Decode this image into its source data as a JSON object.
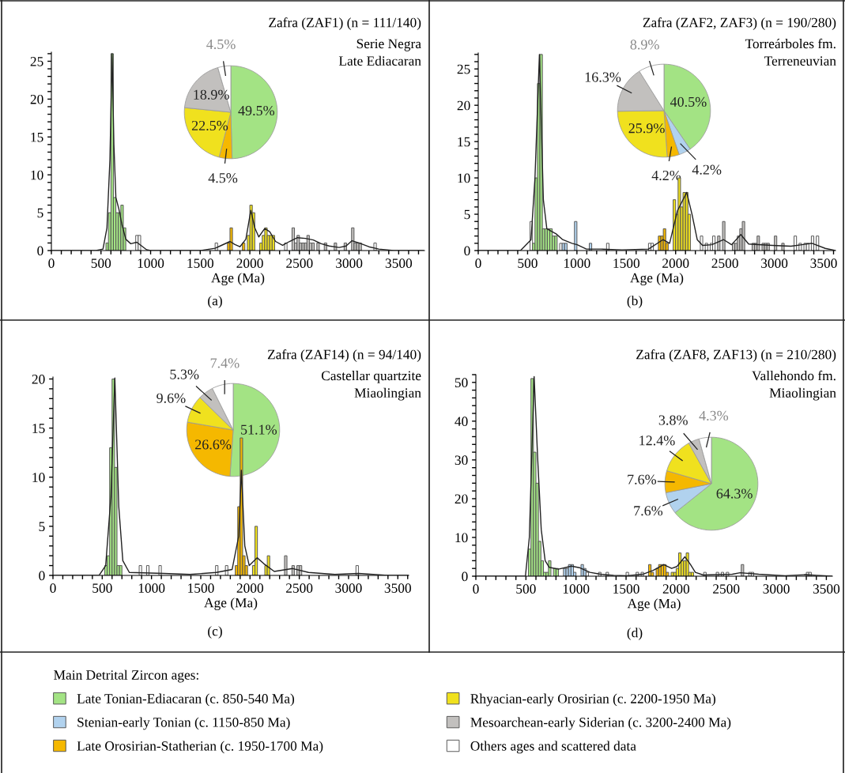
{
  "chart_data": [
    {
      "type": "pie",
      "categories": [
        null,
        null,
        null,
        null,
        null
      ],
      "values": [
        49.5,
        4.5,
        22.5,
        18.9,
        4.5
      ],
      "colors": [
        "#a3e384",
        "#f5b800",
        "#f0e11e",
        "#c2c0be",
        "#ffffff"
      ],
      "value_labels": [
        "49.5%",
        "4.5%",
        "22.5%",
        "18.9%",
        "4.5%"
      ]
    },
    {
      "type": "histogram",
      "title": "Zafra (ZAF1) (n = 111/140)",
      "subtitle": "Serie Negra\nLate Ediacaran",
      "xlabel": "Age (Ma)",
      "annotations": [
        "(a)"
      ],
      "xlim": [
        0,
        3760
      ],
      "ylim": [
        0,
        26.2
      ],
      "xticks": [
        0,
        {
          "value": 100,
          "label": null
        },
        {
          "value": 200,
          "label": null
        },
        {
          "value": 300,
          "label": null
        },
        {
          "value": 400,
          "label": null
        },
        500,
        {
          "value": 600,
          "label": null
        },
        {
          "value": 700,
          "label": null
        },
        {
          "value": 800,
          "label": null
        },
        {
          "value": 900,
          "label": null
        },
        1000,
        {
          "value": 1100,
          "label": null
        },
        {
          "value": 1200,
          "label": null
        },
        {
          "value": 1300,
          "label": null
        },
        {
          "value": 1400,
          "label": null
        },
        1500,
        {
          "value": 1600,
          "label": null
        },
        {
          "value": 1700,
          "label": null
        },
        {
          "value": 1800,
          "label": null
        },
        {
          "value": 1900,
          "label": null
        },
        2000,
        {
          "value": 2100,
          "label": null
        },
        {
          "value": 2200,
          "label": null
        },
        {
          "value": 2300,
          "label": null
        },
        {
          "value": 2400,
          "label": null
        },
        2500,
        {
          "value": 2600,
          "label": null
        },
        {
          "value": 2700,
          "label": null
        },
        {
          "value": 2800,
          "label": null
        },
        {
          "value": 2900,
          "label": null
        },
        3000,
        {
          "value": 3100,
          "label": null
        },
        {
          "value": 3200,
          "label": null
        },
        {
          "value": 3300,
          "label": null
        },
        {
          "value": 3400,
          "label": null
        },
        3500,
        {
          "value": 3600,
          "label": null
        },
        {
          "value": 3700,
          "label": null
        }
      ],
      "yticks": [
        0,
        {
          "value": 1,
          "label": null
        },
        {
          "value": 2,
          "label": null
        },
        {
          "value": 3,
          "label": null
        },
        {
          "value": 4,
          "label": null
        },
        5,
        {
          "value": 6,
          "label": null
        },
        {
          "value": 7,
          "label": null
        },
        {
          "value": 8,
          "label": null
        },
        {
          "value": 9,
          "label": null
        },
        10,
        {
          "value": 11,
          "label": null
        },
        {
          "value": 12,
          "label": null
        },
        {
          "value": 13,
          "label": null
        },
        {
          "value": 14,
          "label": null
        },
        15,
        {
          "value": 16,
          "label": null
        },
        {
          "value": 17,
          "label": null
        },
        {
          "value": 18,
          "label": null
        },
        {
          "value": 19,
          "label": null
        },
        20,
        {
          "value": 21,
          "label": null
        },
        {
          "value": 22,
          "label": null
        },
        {
          "value": 23,
          "label": null
        },
        {
          "value": 24,
          "label": null
        },
        25,
        {
          "value": 26,
          "label": null
        }
      ],
      "bins": [
        550,
        575,
        600,
        625,
        650,
        675,
        700,
        725,
        750,
        850,
        875,
        900,
        1650,
        1675,
        1775,
        1800,
        1825,
        1925,
        1950,
        1975,
        2000,
        2025,
        2050,
        2100,
        2125,
        2150,
        2175,
        2200,
        2225,
        2250,
        2350,
        2375,
        2425,
        2450,
        2475,
        2500,
        2525,
        2550,
        2575,
        2600,
        2625,
        2650,
        2675,
        2700,
        2750,
        2775,
        2850,
        2875,
        2950,
        2975,
        3025,
        3050,
        3075,
        3100,
        3125,
        3250,
        3275
      ],
      "values": [
        1,
        5,
        26,
        7,
        5,
        5,
        6,
        3,
        0,
        2,
        2,
        0,
        1,
        0,
        1,
        3,
        0,
        1,
        0,
        2,
        6,
        5,
        0,
        1,
        2,
        3,
        2,
        2,
        2,
        0,
        1,
        0,
        3,
        1,
        2,
        1,
        1,
        1,
        2,
        1,
        1,
        0,
        1,
        0,
        1,
        0,
        1,
        0,
        1,
        0,
        3,
        1,
        1,
        1,
        0,
        1
      ],
      "colors": [
        "#a3e384",
        "#a3e384",
        "#a3e384",
        "#a3e384",
        "#a3e384",
        "#a3e384",
        "#a3e384",
        "#a3e384",
        "#ffffff",
        "#ffffff",
        "#ffffff",
        "#ffffff",
        "#ffffff",
        "#ffffff",
        "#f5b800",
        "#f5b800",
        "#ffffff",
        "#f5b800",
        "#ffffff",
        "#f0e11e",
        "#f0e11e",
        "#f0e11e",
        "#ffffff",
        "#f0e11e",
        "#f0e11e",
        "#f0e11e",
        "#f0e11e",
        "#f0e11e",
        "#f0e11e",
        "#ffffff",
        "#ffffff",
        "#ffffff",
        "#c2c0be",
        "#c2c0be",
        "#c2c0be",
        "#c2c0be",
        "#c2c0be",
        "#c2c0be",
        "#c2c0be",
        "#c2c0be",
        "#c2c0be",
        "#ffffff",
        "#c2c0be",
        "#ffffff",
        "#c2c0be",
        "#ffffff",
        "#c2c0be",
        "#ffffff",
        "#c2c0be",
        "#ffffff",
        "#c2c0be",
        "#c2c0be",
        "#c2c0be",
        "#c2c0be",
        "#ffffff",
        "#ffffff"
      ],
      "series": [
        {
          "type": "line",
          "color": "#222222",
          "x": [
            0,
            450,
            520,
            560,
            590,
            612,
            630,
            650,
            680,
            710,
            750,
            800,
            860,
            900,
            960,
            1000,
            1500,
            1650,
            1700,
            1800,
            1850,
            1900,
            1960,
            2010,
            2050,
            2090,
            2150,
            2200,
            2260,
            2330,
            2400,
            2480,
            2560,
            2640,
            2720,
            2800,
            2900,
            2970,
            3030,
            3100,
            3200,
            3300,
            3450,
            3750
          ],
          "values": [
            0,
            0,
            0.2,
            3,
            12,
            26,
            14,
            7,
            5.5,
            3.5,
            1.5,
            0.9,
            1.1,
            0.7,
            0.1,
            0,
            0,
            0.3,
            0.6,
            1.2,
            0.8,
            0.5,
            1.5,
            5.3,
            3,
            1.8,
            2.9,
            2.5,
            1.2,
            0.7,
            1.2,
            1.7,
            1.6,
            1.4,
            0.9,
            0.6,
            0.4,
            0.6,
            1.3,
            1.0,
            0.5,
            0.2,
            0,
            0
          ]
        }
      ]
    },
    {
      "type": "pie",
      "categories": [
        null,
        null,
        null,
        null,
        null,
        null
      ],
      "values": [
        40.5,
        4.2,
        4.2,
        25.9,
        16.3,
        8.9
      ],
      "colors": [
        "#a3e384",
        "#b1d2ee",
        "#f5b800",
        "#f0e11e",
        "#c2c0be",
        "#ffffff"
      ],
      "value_labels": [
        "40.5%",
        "4.2%",
        "4.2%",
        "25.9%",
        "16.3%",
        "8.9%"
      ]
    },
    {
      "type": "histogram",
      "title": "Zafra (ZAF2, ZAF3) (n = 190/280)",
      "subtitle": "Torreárboles fm.\nTerreneuvian",
      "xlabel": "Age (Ma)",
      "annotations": [
        "(b)"
      ],
      "xlim": [
        0,
        3620
      ],
      "ylim": [
        0,
        27.2
      ],
      "xticks": [
        0,
        {
          "value": 100,
          "label": null
        },
        {
          "value": 200,
          "label": null
        },
        {
          "value": 300,
          "label": null
        },
        {
          "value": 400,
          "label": null
        },
        500,
        {
          "value": 600,
          "label": null
        },
        {
          "value": 700,
          "label": null
        },
        {
          "value": 800,
          "label": null
        },
        {
          "value": 900,
          "label": null
        },
        1000,
        {
          "value": 1100,
          "label": null
        },
        {
          "value": 1200,
          "label": null
        },
        {
          "value": 1300,
          "label": null
        },
        {
          "value": 1400,
          "label": null
        },
        1500,
        {
          "value": 1600,
          "label": null
        },
        {
          "value": 1700,
          "label": null
        },
        {
          "value": 1800,
          "label": null
        },
        {
          "value": 1900,
          "label": null
        },
        2000,
        {
          "value": 2100,
          "label": null
        },
        {
          "value": 2200,
          "label": null
        },
        {
          "value": 2300,
          "label": null
        },
        {
          "value": 2400,
          "label": null
        },
        2500,
        {
          "value": 2600,
          "label": null
        },
        {
          "value": 2700,
          "label": null
        },
        {
          "value": 2800,
          "label": null
        },
        {
          "value": 2900,
          "label": null
        },
        3000,
        {
          "value": 3100,
          "label": null
        },
        {
          "value": 3200,
          "label": null
        },
        {
          "value": 3300,
          "label": null
        },
        {
          "value": 3400,
          "label": null
        },
        3500,
        {
          "value": 3600,
          "label": null
        }
      ],
      "yticks": [
        0,
        {
          "value": 1,
          "label": null
        },
        {
          "value": 2,
          "label": null
        },
        {
          "value": 3,
          "label": null
        },
        {
          "value": 4,
          "label": null
        },
        5,
        {
          "value": 6,
          "label": null
        },
        {
          "value": 7,
          "label": null
        },
        {
          "value": 8,
          "label": null
        },
        {
          "value": 9,
          "label": null
        },
        10,
        {
          "value": 11,
          "label": null
        },
        {
          "value": 12,
          "label": null
        },
        {
          "value": 13,
          "label": null
        },
        {
          "value": 14,
          "label": null
        },
        15,
        {
          "value": 16,
          "label": null
        },
        {
          "value": 17,
          "label": null
        },
        {
          "value": 18,
          "label": null
        },
        {
          "value": 19,
          "label": null
        },
        20,
        {
          "value": 21,
          "label": null
        },
        {
          "value": 22,
          "label": null
        },
        {
          "value": 23,
          "label": null
        },
        {
          "value": 24,
          "label": null
        },
        25,
        {
          "value": 26,
          "label": null
        },
        {
          "value": 27,
          "label": null
        }
      ],
      "bins": [
        525,
        550,
        575,
        600,
        625,
        650,
        675,
        700,
        725,
        750,
        775,
        800,
        825,
        850,
        875,
        900,
        975,
        1000,
        1125,
        1150,
        1300,
        1325,
        1725,
        1750,
        1775,
        1825,
        1850,
        1875,
        1900,
        1925,
        1975,
        2000,
        2025,
        2050,
        2075,
        2100,
        2125,
        2150,
        2250,
        2275,
        2300,
        2325,
        2350,
        2375,
        2400,
        2425,
        2450,
        2475,
        2500,
        2575,
        2600,
        2625,
        2650,
        2675,
        2700,
        2775,
        2800,
        2825,
        2850,
        2875,
        2900,
        2925,
        2950,
        3000,
        3025,
        3075,
        3100,
        3200,
        3225,
        3250,
        3275,
        3300,
        3325,
        3350,
        3375,
        3400,
        3425,
        3450
      ],
      "values": [
        4,
        1,
        10,
        23,
        27,
        3,
        3,
        3,
        3,
        2,
        2,
        0,
        1,
        1,
        1,
        0,
        4,
        0,
        1,
        0,
        1,
        0,
        1,
        1,
        0,
        2,
        2,
        3,
        1,
        0,
        7,
        5,
        10,
        6,
        8,
        8,
        5,
        0,
        2,
        0,
        1,
        0,
        1,
        2,
        0,
        2,
        0,
        4,
        0,
        1,
        1,
        2,
        3,
        4,
        0,
        1,
        1,
        2,
        0,
        1,
        1,
        1,
        0,
        2,
        0,
        1,
        0,
        2,
        0,
        1,
        0,
        1,
        1,
        0,
        2,
        0,
        2
      ],
      "colors": [
        "#ffffff",
        "#a3e384",
        "#a3e384",
        "#a3e384",
        "#a3e384",
        "#a3e384",
        "#a3e384",
        "#a3e384",
        "#a3e384",
        "#a3e384",
        "#a3e384",
        "#ffffff",
        "#ffffff",
        "#b1d2ee",
        "#b1d2ee",
        "#ffffff",
        "#b1d2ee",
        "#ffffff",
        "#b1d2ee",
        "#ffffff",
        "#ffffff",
        "#ffffff",
        "#ffffff",
        "#ffffff",
        "#ffffff",
        "#f5b800",
        "#f5b800",
        "#f5b800",
        "#f5b800",
        "#ffffff",
        "#f0e11e",
        "#f0e11e",
        "#f0e11e",
        "#f0e11e",
        "#f0e11e",
        "#f0e11e",
        "#f0e11e",
        "#ffffff",
        "#ffffff",
        "#ffffff",
        "#ffffff",
        "#ffffff",
        "#ffffff",
        "#ffffff",
        "#ffffff",
        "#c2c0be",
        "#ffffff",
        "#c2c0be",
        "#ffffff",
        "#c2c0be",
        "#c2c0be",
        "#c2c0be",
        "#c2c0be",
        "#c2c0be",
        "#ffffff",
        "#c2c0be",
        "#c2c0be",
        "#c2c0be",
        "#ffffff",
        "#c2c0be",
        "#c2c0be",
        "#c2c0be",
        "#ffffff",
        "#c2c0be",
        "#ffffff",
        "#c2c0be",
        "#ffffff",
        "#ffffff",
        "#ffffff",
        "#ffffff",
        "#ffffff",
        "#ffffff",
        "#ffffff",
        "#ffffff",
        "#ffffff",
        "#ffffff",
        "#ffffff"
      ],
      "series": [
        {
          "type": "line",
          "color": "#222222",
          "x": [
            0,
            428,
            535,
            575,
            620,
            660,
            695,
            789,
            856,
            950,
            1003,
            1096,
            1243,
            1457,
            1725,
            1872,
            1939,
            2019,
            2112,
            2166,
            2219,
            2273,
            2366,
            2487,
            2567,
            2660,
            2740,
            2981,
            3168,
            3382,
            3516,
            3620
          ],
          "values": [
            0,
            0,
            1.5,
            10,
            27,
            7,
            3,
            2.3,
            1.5,
            1,
            0.8,
            0.2,
            0.2,
            0.1,
            0.2,
            1.5,
            1,
            5.5,
            8,
            5,
            1.5,
            0.7,
            0.8,
            1.5,
            0.8,
            2.2,
            0.9,
            0.7,
            0.6,
            1.0,
            0.3,
            0
          ]
        }
      ]
    },
    {
      "type": "pie",
      "categories": [
        null,
        null,
        null,
        null,
        null
      ],
      "values": [
        51.1,
        26.6,
        9.6,
        5.3,
        7.4
      ],
      "colors": [
        "#a3e384",
        "#f5b800",
        "#f0e11e",
        "#c2c0be",
        "#ffffff"
      ],
      "value_labels": [
        "51.1%",
        "26.6%",
        "9.6%",
        "5.3%",
        "7.4%"
      ]
    },
    {
      "type": "histogram",
      "title": "Zafra (ZAF14) (n = 94/140)",
      "subtitle": "Castellar quartzite\nMiaolingian",
      "xlabel": "Age (Ma)",
      "annotations": [
        "(c)"
      ],
      "xlim": [
        0,
        3610
      ],
      "ylim": [
        0,
        20.2
      ],
      "xticks": [
        0,
        {
          "value": 100,
          "label": null
        },
        {
          "value": 200,
          "label": null
        },
        {
          "value": 300,
          "label": null
        },
        {
          "value": 400,
          "label": null
        },
        500,
        {
          "value": 600,
          "label": null
        },
        {
          "value": 700,
          "label": null
        },
        {
          "value": 800,
          "label": null
        },
        {
          "value": 900,
          "label": null
        },
        1000,
        {
          "value": 1100,
          "label": null
        },
        {
          "value": 1200,
          "label": null
        },
        {
          "value": 1300,
          "label": null
        },
        {
          "value": 1400,
          "label": null
        },
        1500,
        {
          "value": 1600,
          "label": null
        },
        {
          "value": 1700,
          "label": null
        },
        {
          "value": 1800,
          "label": null
        },
        {
          "value": 1900,
          "label": null
        },
        2000,
        {
          "value": 2100,
          "label": null
        },
        {
          "value": 2200,
          "label": null
        },
        {
          "value": 2300,
          "label": null
        },
        {
          "value": 2400,
          "label": null
        },
        2500,
        {
          "value": 2600,
          "label": null
        },
        {
          "value": 2700,
          "label": null
        },
        {
          "value": 2800,
          "label": null
        },
        {
          "value": 2900,
          "label": null
        },
        3000,
        {
          "value": 3100,
          "label": null
        },
        {
          "value": 3200,
          "label": null
        },
        {
          "value": 3300,
          "label": null
        },
        {
          "value": 3400,
          "label": null
        },
        3500,
        {
          "value": 3600,
          "label": null
        }
      ],
      "yticks": [
        0,
        {
          "value": 1,
          "label": null
        },
        {
          "value": 2,
          "label": null
        },
        {
          "value": 3,
          "label": null
        },
        {
          "value": 4,
          "label": null
        },
        5,
        {
          "value": 6,
          "label": null
        },
        {
          "value": 7,
          "label": null
        },
        {
          "value": 8,
          "label": null
        },
        {
          "value": 9,
          "label": null
        },
        10,
        {
          "value": 11,
          "label": null
        },
        {
          "value": 12,
          "label": null
        },
        {
          "value": 13,
          "label": null
        },
        {
          "value": 14,
          "label": null
        },
        15,
        {
          "value": 16,
          "label": null
        },
        {
          "value": 17,
          "label": null
        },
        {
          "value": 18,
          "label": null
        },
        {
          "value": 19,
          "label": null
        },
        20
      ],
      "bins": [
        525,
        550,
        575,
        600,
        625,
        650,
        675,
        700,
        875,
        900,
        950,
        975,
        1075,
        1100,
        1650,
        1675,
        1750,
        1775,
        1850,
        1875,
        1900,
        1925,
        1950,
        1975,
        2025,
        2050,
        2075,
        2150,
        2175,
        2200,
        2350,
        2375,
        2425,
        2450,
        2475,
        2500,
        2525,
        3075,
        3100
      ],
      "values": [
        1,
        2,
        13,
        20,
        11,
        1,
        1,
        0,
        1,
        0,
        1,
        0,
        1,
        0,
        1,
        0,
        1,
        0,
        1,
        7,
        14,
        2,
        1,
        0,
        1,
        5,
        0,
        1,
        2,
        0,
        2,
        0,
        1,
        0,
        1,
        1,
        0,
        1
      ],
      "colors": [
        "#a3e384",
        "#a3e384",
        "#a3e384",
        "#a3e384",
        "#a3e384",
        "#a3e384",
        "#a3e384",
        "#ffffff",
        "#ffffff",
        "#ffffff",
        "#ffffff",
        "#ffffff",
        "#ffffff",
        "#ffffff",
        "#ffffff",
        "#ffffff",
        "#ffffff",
        "#ffffff",
        "#f5b800",
        "#f5b800",
        "#f5b800",
        "#f5b800",
        "#f5b800",
        "#ffffff",
        "#f0e11e",
        "#f0e11e",
        "#ffffff",
        "#f0e11e",
        "#f0e11e",
        "#ffffff",
        "#c2c0be",
        "#ffffff",
        "#c2c0be",
        "#ffffff",
        "#c2c0be",
        "#c2c0be",
        "#ffffff",
        "#ffffff"
      ],
      "series": [
        {
          "type": "line",
          "color": "#222222",
          "x": [
            0,
            468,
            535,
            588,
            628,
            668,
            709,
            775,
            1123,
            1390,
            1658,
            1818,
            1885,
            1912,
            1947,
            1992,
            2072,
            2139,
            2246,
            2433,
            2594,
            2861,
            3102,
            3396,
            3610
          ],
          "values": [
            0,
            0,
            1,
            8,
            20.1,
            7,
            1.5,
            0.3,
            0.2,
            0.1,
            0.3,
            0.6,
            4,
            10.7,
            3,
            1,
            1.8,
            1.2,
            0.4,
            0.7,
            0.3,
            0.1,
            0.2,
            0,
            0
          ]
        }
      ]
    },
    {
      "type": "pie",
      "categories": [
        null,
        null,
        null,
        null,
        null,
        null
      ],
      "values": [
        64.3,
        7.6,
        7.6,
        12.4,
        3.8,
        4.3
      ],
      "colors": [
        "#a3e384",
        "#b1d2ee",
        "#f5b800",
        "#f0e11e",
        "#c2c0be",
        "#ffffff"
      ],
      "value_labels": [
        "64.3%",
        "7.6%",
        "7.6%",
        "12.4%",
        "3.8%",
        "4.3%"
      ]
    },
    {
      "type": "histogram",
      "title": "Zafra (ZAF8, ZAF13) (n = 210/280)",
      "subtitle": "Vallehondo fm.\nMiaolingian",
      "xlabel": "Age (Ma)",
      "annotations": [
        "(d)"
      ],
      "xlim": [
        0,
        3560
      ],
      "ylim": [
        0,
        52
      ],
      "xticks": [
        0,
        {
          "value": 100,
          "label": null
        },
        {
          "value": 200,
          "label": null
        },
        {
          "value": 300,
          "label": null
        },
        {
          "value": 400,
          "label": null
        },
        500,
        {
          "value": 600,
          "label": null
        },
        {
          "value": 700,
          "label": null
        },
        {
          "value": 800,
          "label": null
        },
        {
          "value": 900,
          "label": null
        },
        1000,
        {
          "value": 1100,
          "label": null
        },
        {
          "value": 1200,
          "label": null
        },
        {
          "value": 1300,
          "label": null
        },
        {
          "value": 1400,
          "label": null
        },
        1500,
        {
          "value": 1600,
          "label": null
        },
        {
          "value": 1700,
          "label": null
        },
        {
          "value": 1800,
          "label": null
        },
        {
          "value": 1900,
          "label": null
        },
        2000,
        {
          "value": 2100,
          "label": null
        },
        {
          "value": 2200,
          "label": null
        },
        {
          "value": 2300,
          "label": null
        },
        {
          "value": 2400,
          "label": null
        },
        2500,
        {
          "value": 2600,
          "label": null
        },
        {
          "value": 2700,
          "label": null
        },
        {
          "value": 2800,
          "label": null
        },
        {
          "value": 2900,
          "label": null
        },
        3000,
        {
          "value": 3100,
          "label": null
        },
        {
          "value": 3200,
          "label": null
        },
        {
          "value": 3300,
          "label": null
        },
        {
          "value": 3400,
          "label": null
        },
        3500
      ],
      "yticks": [
        0,
        {
          "value": 2,
          "label": null
        },
        {
          "value": 4,
          "label": null
        },
        {
          "value": 6,
          "label": null
        },
        {
          "value": 8,
          "label": null
        },
        10,
        {
          "value": 12,
          "label": null
        },
        {
          "value": 14,
          "label": null
        },
        {
          "value": 16,
          "label": null
        },
        {
          "value": 18,
          "label": null
        },
        20,
        {
          "value": 22,
          "label": null
        },
        {
          "value": 24,
          "label": null
        },
        {
          "value": 26,
          "label": null
        },
        {
          "value": 28,
          "label": null
        },
        30,
        {
          "value": 32,
          "label": null
        },
        {
          "value": 34,
          "label": null
        },
        {
          "value": 36,
          "label": null
        },
        {
          "value": 38,
          "label": null
        },
        40,
        {
          "value": 42,
          "label": null
        },
        {
          "value": 44,
          "label": null
        },
        {
          "value": 46,
          "label": null
        },
        {
          "value": 48,
          "label": null
        },
        50,
        {
          "value": 52,
          "label": null
        }
      ],
      "bins": [
        525,
        550,
        575,
        600,
        625,
        650,
        675,
        700,
        725,
        750,
        775,
        800,
        825,
        875,
        900,
        925,
        950,
        975,
        1000,
        1050,
        1075,
        1100,
        1125,
        1225,
        1250,
        1300,
        1325,
        1500,
        1525,
        1600,
        1625,
        1650,
        1675,
        1725,
        1750,
        1775,
        1800,
        1825,
        1850,
        1875,
        1900,
        1925,
        1950,
        1975,
        2000,
        2025,
        2050,
        2075,
        2100,
        2125,
        2150,
        2175,
        2275,
        2300,
        2400,
        2425,
        2450,
        2475,
        2500,
        2525,
        2650,
        2675,
        2725,
        2750,
        2775,
        3300,
        3325,
        3350
      ],
      "values": [
        7,
        51,
        32,
        24,
        9,
        4,
        1,
        1,
        4,
        0,
        2,
        2,
        0,
        2,
        2,
        3,
        3,
        1,
        0,
        3,
        2,
        1,
        0,
        1,
        0,
        1,
        0,
        1,
        0,
        1,
        0,
        1,
        0,
        3,
        1,
        0,
        2,
        3,
        3,
        3,
        1,
        0,
        1,
        1,
        2,
        6,
        4,
        4,
        6,
        1,
        1,
        0,
        1,
        0,
        1,
        0,
        1,
        0,
        1,
        0,
        3,
        0,
        1,
        1,
        0,
        1,
        1
      ],
      "colors": [
        "#a3e384",
        "#a3e384",
        "#a3e384",
        "#a3e384",
        "#a3e384",
        "#a3e384",
        "#a3e384",
        "#a3e384",
        "#a3e384",
        "#a3e384",
        "#a3e384",
        "#a3e384",
        "#ffffff",
        "#b1d2ee",
        "#b1d2ee",
        "#b1d2ee",
        "#b1d2ee",
        "#b1d2ee",
        "#ffffff",
        "#b1d2ee",
        "#b1d2ee",
        "#ffffff",
        "#ffffff",
        "#ffffff",
        "#ffffff",
        "#ffffff",
        "#ffffff",
        "#ffffff",
        "#ffffff",
        "#ffffff",
        "#ffffff",
        "#ffffff",
        "#ffffff",
        "#f5b800",
        "#f5b800",
        "#f5b800",
        "#f5b800",
        "#f5b800",
        "#f5b800",
        "#f5b800",
        "#f5b800",
        "#ffffff",
        "#f0e11e",
        "#f0e11e",
        "#f0e11e",
        "#f0e11e",
        "#f0e11e",
        "#f0e11e",
        "#f0e11e",
        "#f0e11e",
        "#f0e11e",
        "#ffffff",
        "#ffffff",
        "#ffffff",
        "#ffffff",
        "#ffffff",
        "#ffffff",
        "#ffffff",
        "#ffffff",
        "#ffffff",
        "#c2c0be",
        "#ffffff",
        "#ffffff",
        "#ffffff",
        "#ffffff",
        "#ffffff",
        "#ffffff"
      ],
      "series": [
        {
          "type": "line",
          "color": "#222222",
          "x": [
            0,
            495,
            534,
            582,
            618,
            653,
            692,
            732,
            824,
            955,
            1034,
            1139,
            1245,
            1376,
            1508,
            1666,
            1771,
            1876,
            1955,
            2008,
            2087,
            2139,
            2192,
            2271,
            2561,
            2639,
            2824,
            3087,
            3297,
            3403,
            3555
          ],
          "values": [
            0,
            0,
            10,
            51.5,
            30,
            12,
            4,
            2.3,
            1.8,
            2.6,
            2.2,
            1,
            0.5,
            0.2,
            0.1,
            0.5,
            1.5,
            3,
            2,
            2.5,
            5,
            3.2,
            1,
            0.3,
            0.5,
            0.9,
            0.5,
            0.1,
            0.4,
            0.2,
            0
          ]
        }
      ]
    },
    {
      "type": "other",
      "legend": "bottom",
      "legend_title": "Main Detrital Zircon ages:",
      "series": [
        {
          "name": "Late Tonian-Ediacaran (c. 850-540 Ma)",
          "color": "#a3e384"
        },
        {
          "name": "Stenian-early Tonian (c. 1150-850 Ma)",
          "color": "#b1d2ee"
        },
        {
          "name": "Late Orosirian-Statherian (c. 1950-1700 Ma)",
          "color": "#f5b800"
        },
        {
          "name": "Rhyacian-early Orosirian (c. 2200-1950 Ma)",
          "color": "#f0e11e"
        },
        {
          "name": "Mesoarchean-early Siderian (c. 3200-2400 Ma)",
          "color": "#c2c0be"
        },
        {
          "name": "Others ages and scattered data",
          "color": "#ffffff"
        }
      ]
    }
  ]
}
